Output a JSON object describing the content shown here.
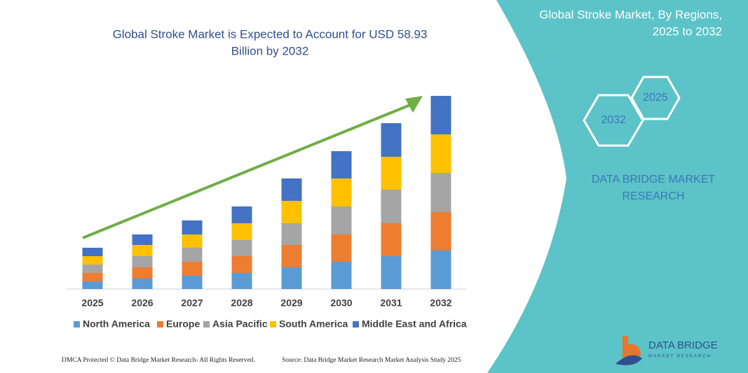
{
  "chart_data": {
    "type": "bar",
    "stacked": true,
    "title": [
      "Global Stroke Market is Expected to Account for USD 58.93",
      "Billion by 2032"
    ],
    "categories": [
      "2025",
      "2026",
      "2027",
      "2028",
      "2029",
      "2030",
      "2031",
      "2032"
    ],
    "series": [
      {
        "name": "North America",
        "color": "#5b9bd5",
        "values": [
          11,
          15,
          19,
          23,
          31,
          39,
          47,
          55
        ]
      },
      {
        "name": "Europe",
        "color": "#ed7d31",
        "values": [
          12,
          16,
          20,
          24,
          32,
          39,
          47,
          55
        ]
      },
      {
        "name": "Asia Pacific",
        "color": "#a5a5a5",
        "values": [
          12,
          16,
          20,
          23,
          31,
          40,
          48,
          56
        ]
      },
      {
        "name": "South America",
        "color": "#ffc000",
        "values": [
          12,
          16,
          19,
          24,
          32,
          40,
          47,
          55
        ]
      },
      {
        "name": "Middle East and Africa",
        "color": "#4472c4",
        "values": [
          12,
          15,
          20,
          24,
          32,
          39,
          48,
          55
        ]
      }
    ]
  },
  "sidebar": {
    "title": [
      "Global Stroke Market, By Regions,",
      "2025 to 2032"
    ],
    "hex_labels": [
      "2032",
      "2025"
    ],
    "brand": [
      "DATA BRIDGE MARKET",
      "RESEARCH"
    ]
  },
  "logo": {
    "name": "DATA BRIDGE",
    "tagline": "MARKET RESEARCH"
  },
  "footer": {
    "copyright": "DMCA Protected © Data Bridge Market Research- All Rights Reserved.",
    "source": "Source: Data Bridge Market Research Market Analysis Study 2025"
  }
}
